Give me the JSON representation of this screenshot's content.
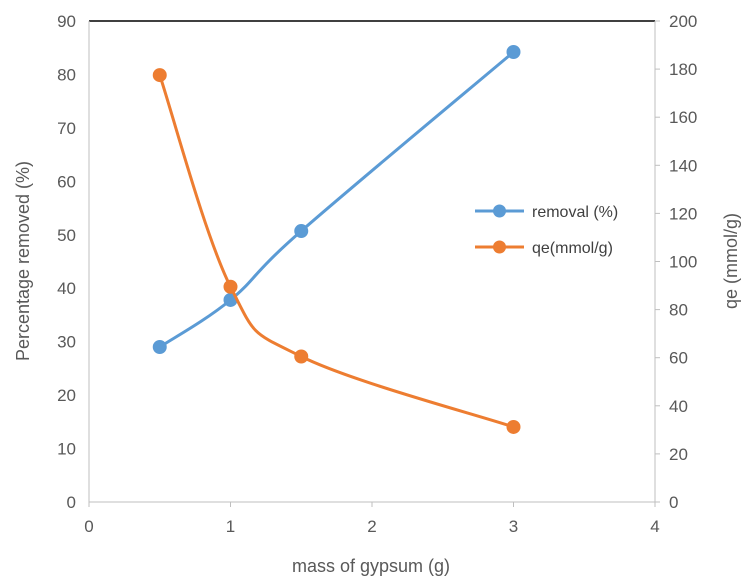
{
  "chart_data": {
    "type": "line",
    "title": "",
    "xlabel": "mass of gypsum (g)",
    "ylabel": "Percentage removed (%)",
    "y2label": "qe (mmol/g)",
    "xlim": [
      0,
      4
    ],
    "ylim": [
      0,
      90
    ],
    "y2lim": [
      0,
      200
    ],
    "xticks": [
      "0",
      "1",
      "2",
      "3",
      "4"
    ],
    "yticks": [
      "0",
      "10",
      "20",
      "30",
      "40",
      "50",
      "60",
      "70",
      "80",
      "90"
    ],
    "y2ticks": [
      "0",
      "20",
      "40",
      "60",
      "80",
      "100",
      "120",
      "140",
      "160",
      "180",
      "200"
    ],
    "grid": false,
    "legend_position": "right",
    "series": [
      {
        "name": "removal (%)",
        "axis": "left",
        "color": "#5B9BD5",
        "smooth": true,
        "x": [
          0.5,
          1,
          1.5,
          3
        ],
        "y": [
          29,
          37.8,
          50.7,
          84.2
        ]
      },
      {
        "name": "qe(mmol/g)",
        "axis": "right",
        "color": "#ED7D31",
        "smooth": true,
        "x": [
          0.5,
          1,
          1.5,
          3
        ],
        "y": [
          177.5,
          89.5,
          60.5,
          31.2
        ]
      }
    ]
  }
}
